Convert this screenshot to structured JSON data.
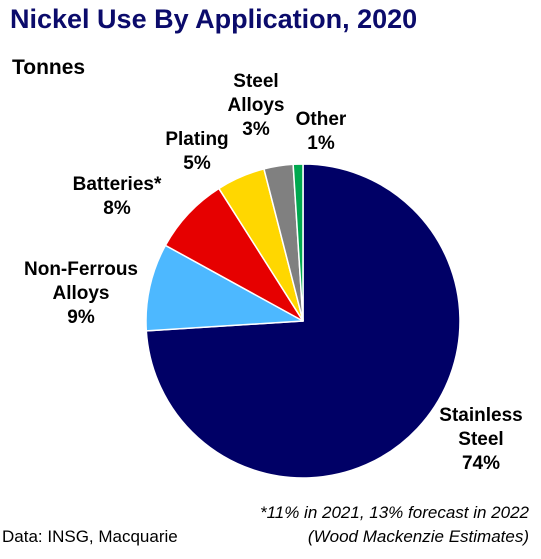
{
  "chart_data": {
    "type": "pie",
    "title": "Nickel Use By Application, 2020",
    "subtitle": "Tonnes",
    "slices": [
      {
        "label_lines": [
          "Stainless",
          "Steel"
        ],
        "value": 74,
        "value_label": "74%",
        "color": "#000066"
      },
      {
        "label_lines": [
          "Non-Ferrous",
          "Alloys"
        ],
        "value": 9,
        "value_label": "9%",
        "color": "#4db8ff"
      },
      {
        "label_lines": [
          "Batteries*"
        ],
        "value": 8,
        "value_label": "8%",
        "color": "#e60000"
      },
      {
        "label_lines": [
          "Plating"
        ],
        "value": 5,
        "value_label": "5%",
        "color": "#ffd700"
      },
      {
        "label_lines": [
          "Steel",
          "Alloys"
        ],
        "value": 3,
        "value_label": "3%",
        "color": "#808080"
      },
      {
        "label_lines": [
          "Other"
        ],
        "value": 1,
        "value_label": "1%",
        "color": "#00a84f"
      }
    ],
    "footnote_lines": [
      "*11% in 2021, 13% forecast in 2022",
      "(Wood Mackenzie Estimates)"
    ],
    "source": "Data: INSG, Macquarie"
  }
}
